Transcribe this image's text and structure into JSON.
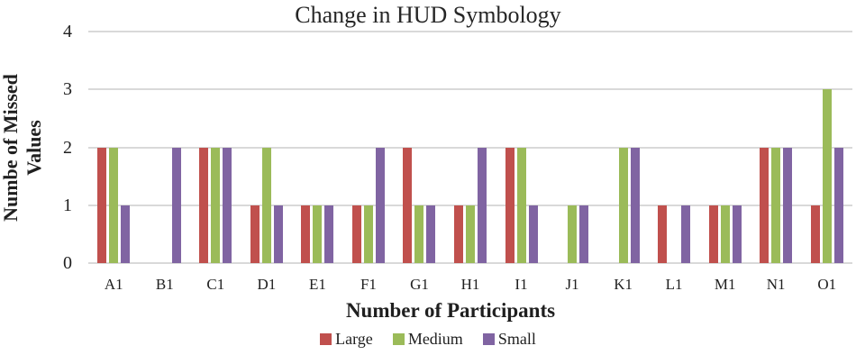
{
  "chart_data": {
    "type": "bar",
    "title": "Change in HUD Symbology",
    "xlabel": "Number of Participants",
    "ylabel": "Numbe of Missed Values",
    "ylabel_lines": [
      "Numbe of Missed",
      "Values"
    ],
    "categories": [
      "A1",
      "B1",
      "C1",
      "D1",
      "E1",
      "F1",
      "G1",
      "H1",
      "I1",
      "J1",
      "K1",
      "L1",
      "M1",
      "N1",
      "O1"
    ],
    "series": [
      {
        "name": "Large",
        "color": "#C0504D",
        "values": [
          2,
          0,
          2,
          1,
          1,
          1,
          2,
          1,
          2,
          0,
          0,
          1,
          1,
          2,
          1
        ]
      },
      {
        "name": "Medium",
        "color": "#9BBB59",
        "values": [
          2,
          0,
          2,
          2,
          1,
          1,
          1,
          1,
          2,
          1,
          2,
          0,
          1,
          2,
          3
        ]
      },
      {
        "name": "Small",
        "color": "#8064A2",
        "values": [
          1,
          2,
          2,
          1,
          1,
          2,
          1,
          2,
          1,
          1,
          2,
          1,
          1,
          2,
          2
        ]
      }
    ],
    "ylim": [
      0,
      4
    ],
    "yticks": [
      0,
      1,
      2,
      3,
      4
    ],
    "grid": true,
    "legend_position": "bottom",
    "gridline_color": "#d9d9d9",
    "text_color": "#1f1f1f"
  }
}
